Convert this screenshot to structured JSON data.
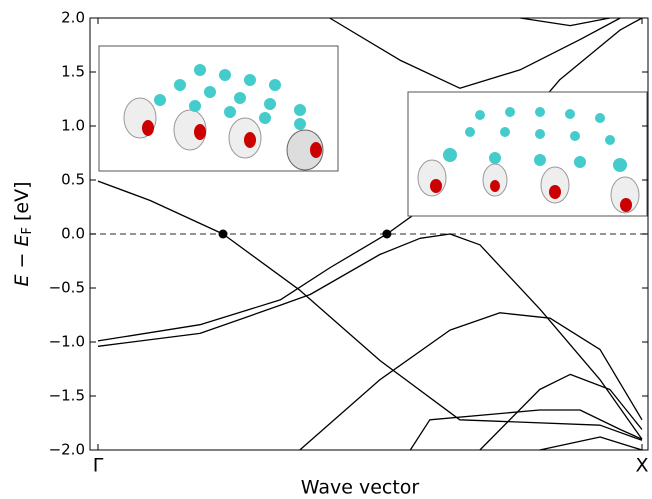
{
  "chart_data": {
    "type": "line",
    "xlabel": "Wave vector",
    "ylabel": {
      "main": "E − E",
      "sub": "F",
      "unit": "[eV]"
    },
    "xlim": [
      -0.0147,
      1.011
    ],
    "ylim": [
      -2,
      2
    ],
    "xticks": [
      {
        "value": 0,
        "label": "Γ"
      },
      {
        "value": 1,
        "label": "X"
      }
    ],
    "yticks": [
      {
        "value": -2,
        "label": "−2.0"
      },
      {
        "value": -1.5,
        "label": "−1.5"
      },
      {
        "value": -1,
        "label": "−1.0"
      },
      {
        "value": -0.5,
        "label": "−0.5"
      },
      {
        "value": 0,
        "label": "0.0"
      },
      {
        "value": 0.5,
        "label": "0.5"
      },
      {
        "value": 1,
        "label": "1.0"
      },
      {
        "value": 1.5,
        "label": "1.5"
      },
      {
        "value": 2,
        "label": "2.0"
      }
    ],
    "reference_line": {
      "value": 0,
      "color": "#555"
    },
    "markers": {
      "x": [
        0.2298,
        0.531
      ],
      "y": [
        0,
        0
      ],
      "color": "#000"
    },
    "series": [
      {
        "color": "#000",
        "x": [
          0,
          0.096,
          0.2298,
          0.371,
          0.518,
          0.665,
          0.923,
          1
        ],
        "values": [
          0.49,
          0.31,
          0,
          -0.52,
          -1.17,
          -1.72,
          -1.77,
          -1.91
        ]
      },
      {
        "color": "#000",
        "x": [
          0,
          0.1875,
          0.335,
          0.427,
          0.531,
          0.592,
          0.739,
          0.849,
          0.96,
          1
        ],
        "values": [
          -0.99,
          -0.84,
          -0.61,
          -0.31,
          0,
          0.22,
          0.78,
          1.43,
          1.89,
          2
        ]
      },
      {
        "color": "#000",
        "x": [
          0,
          0.1875,
          0.335,
          0.39,
          0.518,
          0.592,
          0.647,
          0.702,
          0.813,
          0.923,
          1
        ],
        "values": [
          -1.04,
          -0.92,
          -0.66,
          -0.56,
          -0.19,
          -0.04,
          0,
          -0.1,
          -0.7,
          -1.35,
          -1.9
        ]
      },
      {
        "color": "#000",
        "x": [
          0.371,
          0.518,
          0.647,
          0.739,
          0.831,
          0.923,
          1
        ],
        "values": [
          -2,
          -1.35,
          -0.89,
          -0.73,
          -0.78,
          -1.07,
          -1.72
        ]
      },
      {
        "color": "#000",
        "x": [
          0.702,
          0.812,
          0.868,
          0.941,
          1
        ],
        "values": [
          -2,
          -1.44,
          -1.3,
          -1.44,
          -1.81
        ]
      },
      {
        "color": "#000",
        "x": [
          0.574,
          0.61,
          0.812,
          0.886,
          0.96,
          1
        ],
        "values": [
          -2,
          -1.72,
          -1.63,
          -1.63,
          -1.81,
          -1.9
        ]
      },
      {
        "color": "#000",
        "x": [
          0.812,
          0.923,
          1
        ],
        "values": [
          -2,
          -1.88,
          -2
        ]
      },
      {
        "color": "#000",
        "x": [
          0.426,
          0.555,
          0.665,
          0.776,
          0.886,
          0.96
        ],
        "values": [
          2,
          1.61,
          1.35,
          1.52,
          1.8,
          2
        ]
      },
      {
        "color": "#000",
        "x": [
          0.776,
          0.868,
          0.941
        ],
        "values": [
          2,
          1.93,
          2
        ]
      }
    ]
  }
}
